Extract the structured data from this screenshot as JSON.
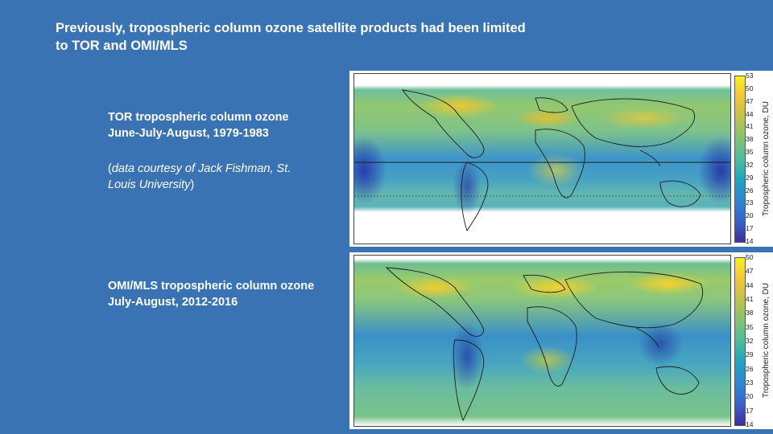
{
  "slide": {
    "title_line1": "Previously, tropospheric column ozone satellite products had been limited",
    "title_line2": "to TOR and OMI/MLS"
  },
  "tor": {
    "caption_line1": "TOR tropospheric column ozone",
    "caption_line2": "June-July-August, 1979-1983",
    "credit_open": "(",
    "credit_italic_line1": "data courtesy of Jack Fishman, St.",
    "credit_italic_line2": "Louis University",
    "credit_close": ")",
    "colorbar_label": "Tropospheric column ozone, DU",
    "ticks": [
      "53",
      "50",
      "47",
      "44",
      "41",
      "38",
      "35",
      "32",
      "29",
      "26",
      "23",
      "20",
      "17",
      "14"
    ]
  },
  "omi": {
    "caption_line1": "OMI/MLS tropospheric column ozone",
    "caption_line2": "July-August, 2012-2016",
    "colorbar_label": "Tropospheric column ozone, DU",
    "ticks": [
      "50",
      "47",
      "44",
      "41",
      "38",
      "35",
      "32",
      "29",
      "26",
      "23",
      "20",
      "17",
      "14"
    ]
  }
}
